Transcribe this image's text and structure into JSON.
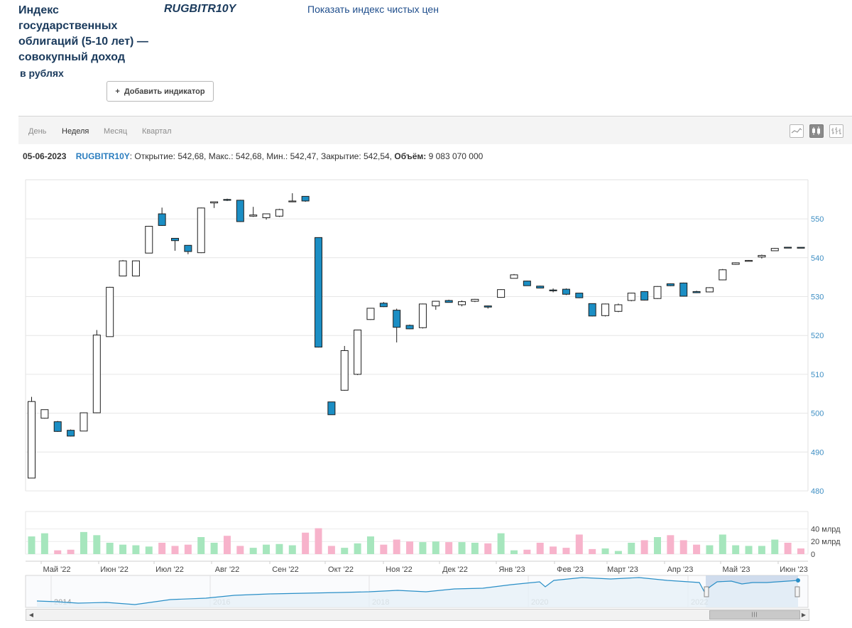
{
  "header": {
    "title": "Индекс государственных облигаций (5-10 лет) — совокупный доход",
    "title_sub": "в рублях",
    "ticker": "RUGBITR10Y",
    "clean_index_link": "Показать индекс чистых цен",
    "add_indicator_icon": "+",
    "add_indicator_label": "Добавить индикатор"
  },
  "toolbar": {
    "tabs": [
      {
        "label": "День",
        "active": false
      },
      {
        "label": "Неделя",
        "active": true
      },
      {
        "label": "Месяц",
        "active": false
      },
      {
        "label": "Квартал",
        "active": false
      }
    ],
    "chart_type_icons": [
      "line-chart-icon",
      "candlestick-chart-icon",
      "ohlc-chart-icon"
    ],
    "active_chart_type": "candlestick-chart-icon"
  },
  "info_bar": {
    "date": "05-06-2023",
    "ticker": "RUGBITR10Y",
    "ohlc_text": ": Открытие: 542,68, Макс.: 542,68, Мин.: 542,47, Закрытие: 542,54, ",
    "volume_label": "Объём:",
    "volume_value": " 9 083 070 000"
  },
  "colors": {
    "bear": "#1b8ec4",
    "bull": "#ffffff",
    "candle_border": "#1e1e1e",
    "vol_up": "#a6e6bd",
    "vol_down": "#f7b3cb",
    "navigator_line": "#2a8fc7",
    "navigator_selection": "#c6d4e8"
  },
  "chart_data": {
    "type": "candlestick",
    "price_axis": {
      "min": 480,
      "max": 550,
      "ticks": [
        "480",
        "490",
        "500",
        "510",
        "520",
        "530",
        "540",
        "550"
      ]
    },
    "volume_axis": {
      "unit": "млрд",
      "ticks": [
        "0",
        "20 млрд",
        "40 млрд"
      ]
    },
    "x_axis_labels": [
      "Май '22",
      "Июн '22",
      "Июл '22",
      "Авг '22",
      "Сен '22",
      "Окт '22",
      "Ноя '22",
      "Дек '22",
      "Янв '23",
      "Фев '23",
      "Март '23",
      "Апр '23",
      "Май '23",
      "Июн '23"
    ],
    "navigator_labels": [
      "2014",
      "2016",
      "2018",
      "2020",
      "2022"
    ],
    "candles": [
      {
        "o": 483.3,
        "h": 504.2,
        "l": 483.3,
        "c": 503.0,
        "v": 28
      },
      {
        "o": 498.7,
        "h": 500.9,
        "l": 498.6,
        "c": 500.9,
        "v": 33
      },
      {
        "o": 497.8,
        "h": 498.0,
        "l": 495.2,
        "c": 495.3,
        "v": 6
      },
      {
        "o": 495.6,
        "h": 495.8,
        "l": 494.0,
        "c": 494.1,
        "v": 7
      },
      {
        "o": 495.4,
        "h": 500.2,
        "l": 495.4,
        "c": 500.1,
        "v": 35
      },
      {
        "o": 500.1,
        "h": 521.4,
        "l": 500.0,
        "c": 520.1,
        "v": 30
      },
      {
        "o": 519.7,
        "h": 532.5,
        "l": 519.7,
        "c": 532.4,
        "v": 18
      },
      {
        "o": 535.3,
        "h": 539.4,
        "l": 535.3,
        "c": 539.2,
        "v": 15
      },
      {
        "o": 535.3,
        "h": 539.3,
        "l": 535.3,
        "c": 539.2,
        "v": 14
      },
      {
        "o": 541.2,
        "h": 548.2,
        "l": 541.2,
        "c": 548.1,
        "v": 12
      },
      {
        "o": 551.3,
        "h": 552.9,
        "l": 548.2,
        "c": 548.3,
        "v": 18
      },
      {
        "o": 545.0,
        "h": 545.0,
        "l": 541.8,
        "c": 544.4,
        "v": 13
      },
      {
        "o": 543.2,
        "h": 543.2,
        "l": 540.9,
        "c": 541.6,
        "v": 15
      },
      {
        "o": 541.3,
        "h": 552.9,
        "l": 541.2,
        "c": 552.8,
        "v": 27
      },
      {
        "o": 554.1,
        "h": 554.4,
        "l": 552.8,
        "c": 554.4,
        "v": 18
      },
      {
        "o": 555.0,
        "h": 555.2,
        "l": 554.6,
        "c": 554.9,
        "v": 29
      },
      {
        "o": 554.8,
        "h": 554.9,
        "l": 549.2,
        "c": 549.3,
        "v": 13
      },
      {
        "o": 550.7,
        "h": 553.1,
        "l": 550.5,
        "c": 551.0,
        "v": 10
      },
      {
        "o": 550.3,
        "h": 551.3,
        "l": 549.8,
        "c": 551.3,
        "v": 15
      },
      {
        "o": 550.7,
        "h": 552.6,
        "l": 550.5,
        "c": 552.4,
        "v": 16
      },
      {
        "o": 554.5,
        "h": 556.6,
        "l": 554.3,
        "c": 554.6,
        "v": 14
      },
      {
        "o": 555.8,
        "h": 555.8,
        "l": 554.4,
        "c": 554.6,
        "v": 34
      },
      {
        "o": 545.2,
        "h": 545.2,
        "l": 516.9,
        "c": 517.0,
        "v": 41
      },
      {
        "o": 502.9,
        "h": 502.9,
        "l": 499.6,
        "c": 499.6,
        "v": 13
      },
      {
        "o": 505.9,
        "h": 517.3,
        "l": 505.8,
        "c": 516.1,
        "v": 10
      },
      {
        "o": 510.0,
        "h": 521.5,
        "l": 509.8,
        "c": 521.4,
        "v": 17
      },
      {
        "o": 524.1,
        "h": 527.0,
        "l": 524.0,
        "c": 527.0,
        "v": 28
      },
      {
        "o": 528.3,
        "h": 528.6,
        "l": 527.3,
        "c": 527.4,
        "v": 15
      },
      {
        "o": 526.5,
        "h": 526.9,
        "l": 518.2,
        "c": 522.1,
        "v": 23
      },
      {
        "o": 522.6,
        "h": 522.8,
        "l": 521.6,
        "c": 521.7,
        "v": 20
      },
      {
        "o": 522.0,
        "h": 528.2,
        "l": 521.8,
        "c": 528.1,
        "v": 19
      },
      {
        "o": 527.6,
        "h": 528.9,
        "l": 526.6,
        "c": 528.8,
        "v": 20
      },
      {
        "o": 529.0,
        "h": 529.2,
        "l": 528.5,
        "c": 528.5,
        "v": 19
      },
      {
        "o": 527.9,
        "h": 529.0,
        "l": 527.5,
        "c": 528.7,
        "v": 19
      },
      {
        "o": 528.8,
        "h": 529.4,
        "l": 528.6,
        "c": 529.3,
        "v": 18
      },
      {
        "o": 527.6,
        "h": 527.7,
        "l": 526.9,
        "c": 527.3,
        "v": 17
      },
      {
        "o": 529.8,
        "h": 531.9,
        "l": 529.7,
        "c": 531.8,
        "v": 33
      },
      {
        "o": 534.7,
        "h": 535.8,
        "l": 534.7,
        "c": 535.6,
        "v": 6
      },
      {
        "o": 534.0,
        "h": 534.1,
        "l": 532.8,
        "c": 532.8,
        "v": 7
      },
      {
        "o": 532.7,
        "h": 532.8,
        "l": 532.1,
        "c": 532.2,
        "v": 18
      },
      {
        "o": 531.7,
        "h": 532.1,
        "l": 531.1,
        "c": 531.5,
        "v": 12
      },
      {
        "o": 531.9,
        "h": 532.1,
        "l": 530.4,
        "c": 530.6,
        "v": 10
      },
      {
        "o": 530.9,
        "h": 530.9,
        "l": 529.6,
        "c": 529.7,
        "v": 31
      },
      {
        "o": 528.2,
        "h": 528.2,
        "l": 524.9,
        "c": 525.0,
        "v": 8
      },
      {
        "o": 525.1,
        "h": 528.2,
        "l": 524.9,
        "c": 528.1,
        "v": 9
      },
      {
        "o": 526.2,
        "h": 528.2,
        "l": 526.0,
        "c": 527.9,
        "v": 5
      },
      {
        "o": 529.0,
        "h": 531.0,
        "l": 528.8,
        "c": 530.9,
        "v": 18
      },
      {
        "o": 531.3,
        "h": 531.4,
        "l": 529.0,
        "c": 529.1,
        "v": 22
      },
      {
        "o": 529.5,
        "h": 532.7,
        "l": 529.4,
        "c": 532.6,
        "v": 27
      },
      {
        "o": 533.3,
        "h": 533.4,
        "l": 532.7,
        "c": 532.8,
        "v": 30
      },
      {
        "o": 533.5,
        "h": 533.6,
        "l": 530.0,
        "c": 530.1,
        "v": 22
      },
      {
        "o": 531.3,
        "h": 531.5,
        "l": 530.9,
        "c": 531.0,
        "v": 15
      },
      {
        "o": 531.2,
        "h": 532.4,
        "l": 531.1,
        "c": 532.3,
        "v": 14
      },
      {
        "o": 534.3,
        "h": 537.1,
        "l": 534.2,
        "c": 536.9,
        "v": 31
      },
      {
        "o": 538.3,
        "h": 538.8,
        "l": 538.2,
        "c": 538.7,
        "v": 14
      },
      {
        "o": 539.2,
        "h": 539.4,
        "l": 539.1,
        "c": 539.3,
        "v": 13
      },
      {
        "o": 540.2,
        "h": 540.8,
        "l": 539.8,
        "c": 540.6,
        "v": 13
      },
      {
        "o": 541.8,
        "h": 542.5,
        "l": 541.8,
        "c": 542.4,
        "v": 23
      },
      {
        "o": 542.7,
        "h": 542.8,
        "l": 542.5,
        "c": 542.5,
        "v": 18
      },
      {
        "o": 542.68,
        "h": 542.68,
        "l": 542.47,
        "c": 542.54,
        "v": 9
      }
    ]
  }
}
